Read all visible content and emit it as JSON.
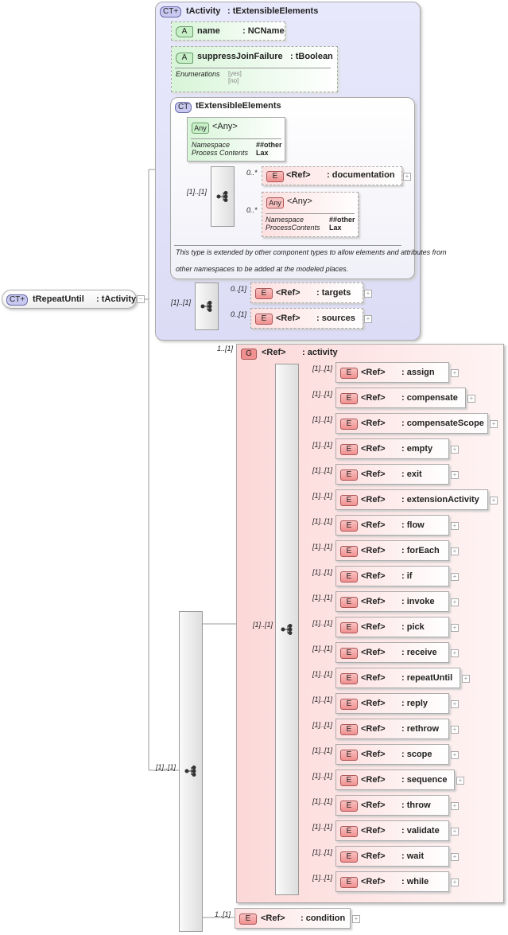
{
  "root": {
    "badge": "CT+",
    "name": "tRepeatUntil",
    "type": ": tActivity",
    "collapse": "−",
    "occurrence": "[1]..[1]"
  },
  "base": {
    "badge": "CT+",
    "name": "tActivity",
    "type": ": tExtensibleElements",
    "attr_name": {
      "badge": "A",
      "name": "name",
      "type": ": NCName"
    },
    "attr_sjf": {
      "badge": "A",
      "name": "suppressJoinFailure",
      "type": ": tBoolean",
      "enum_label": "Enumerations",
      "enum_values": [
        "[yes]",
        "[no]"
      ]
    },
    "ext": {
      "badge": "CT",
      "name": "tExtensibleElements",
      "any1": {
        "badge": "Any",
        "name": "<Any>",
        "ns_label": "Namespace",
        "ns_value": "##other",
        "pc_label": "Process Contents",
        "pc_value": "Lax"
      },
      "seq_occ": "[1]..[1]",
      "documentation": {
        "occ": "0..*",
        "badge": "E",
        "ref": "<Ref>",
        "name": ": documentation"
      },
      "any2": {
        "occ": "0..*",
        "badge": "Any",
        "name": "<Any>",
        "ns_label": "Namespace",
        "ns_value": "##other",
        "pc_label": "ProcessContents",
        "pc_value": "Lax"
      },
      "note": [
        "This type is extended by other component types to allow elements and attributes from",
        "other namespaces to be added at the modeled places."
      ]
    },
    "seq_occ": "[1]..[1]",
    "targets": {
      "occ": "0..[1]",
      "badge": "E",
      "ref": "<Ref>",
      "name": ": targets"
    },
    "sources": {
      "occ": "0..[1]",
      "badge": "E",
      "ref": "<Ref>",
      "name": ": sources"
    }
  },
  "group": {
    "occ": "1..[1]",
    "badge": "G",
    "ref": "<Ref>",
    "name": ": activity",
    "choice_occ": "[1]..[1]",
    "items": [
      {
        "occ": "[1]..[1]",
        "name": ": assign"
      },
      {
        "occ": "[1]..[1]",
        "name": ": compensate"
      },
      {
        "occ": "[1]..[1]",
        "name": ": compensateScope"
      },
      {
        "occ": "[1]..[1]",
        "name": ": empty"
      },
      {
        "occ": "[1]..[1]",
        "name": ": exit"
      },
      {
        "occ": "[1]..[1]",
        "name": ": extensionActivity"
      },
      {
        "occ": "[1]..[1]",
        "name": ": flow"
      },
      {
        "occ": "[1]..[1]",
        "name": ": forEach"
      },
      {
        "occ": "[1]..[1]",
        "name": ": if"
      },
      {
        "occ": "[1]..[1]",
        "name": ": invoke"
      },
      {
        "occ": "[1]..[1]",
        "name": ": pick"
      },
      {
        "occ": "[1]..[1]",
        "name": ": receive"
      },
      {
        "occ": "[1]..[1]",
        "name": ": repeatUntil"
      },
      {
        "occ": "[1]..[1]",
        "name": ": reply"
      },
      {
        "occ": "[1]..[1]",
        "name": ": rethrow"
      },
      {
        "occ": "[1]..[1]",
        "name": ": scope"
      },
      {
        "occ": "[1]..[1]",
        "name": ": sequence"
      },
      {
        "occ": "[1]..[1]",
        "name": ": throw"
      },
      {
        "occ": "[1]..[1]",
        "name": ": validate"
      },
      {
        "occ": "[1]..[1]",
        "name": ": wait"
      },
      {
        "occ": "[1]..[1]",
        "name": ": while"
      }
    ],
    "item_badge": "E",
    "item_ref": "<Ref>"
  },
  "condition": {
    "occ": "1..[1]",
    "badge": "E",
    "ref": "<Ref>",
    "name": ": condition"
  },
  "plus": "+"
}
